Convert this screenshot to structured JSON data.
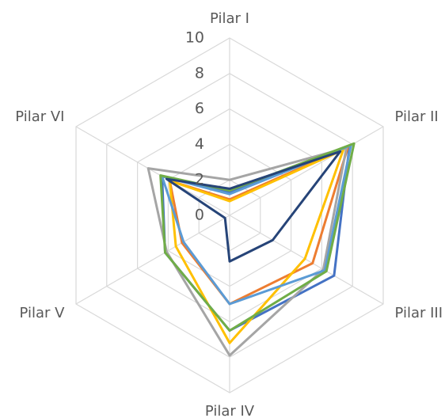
{
  "chart_data": {
    "type": "radar",
    "categories": [
      "Pilar I",
      "Pilar II",
      "Pilar III",
      "Pilar IV",
      "Pilar V",
      "Pilar VI"
    ],
    "rlim": [
      0,
      10
    ],
    "rticks": [
      0,
      2,
      4,
      6,
      8,
      10
    ],
    "grid": true,
    "series": [
      {
        "color": "#4472c4",
        "values": [
          1.3,
          7.8,
          6.8,
          6.5,
          4.2,
          4.4
        ]
      },
      {
        "color": "#ed7d31",
        "values": [
          0.9,
          7.7,
          5.4,
          5.0,
          3.1,
          3.9
        ]
      },
      {
        "color": "#a5a5a5",
        "values": [
          2.0,
          7.6,
          6.1,
          7.9,
          4.1,
          5.3
        ]
      },
      {
        "color": "#ffc000",
        "values": [
          0.8,
          7.4,
          4.9,
          7.2,
          3.5,
          3.9
        ]
      },
      {
        "color": "#5b9bd5",
        "values": [
          1.2,
          7.9,
          6.2,
          5.0,
          3.0,
          4.4
        ]
      },
      {
        "color": "#70ad47",
        "values": [
          1.4,
          8.1,
          6.3,
          6.5,
          4.2,
          4.5
        ]
      },
      {
        "color": "#264478",
        "values": [
          1.5,
          7.2,
          2.8,
          2.6,
          0.3,
          4.1
        ]
      }
    ]
  }
}
